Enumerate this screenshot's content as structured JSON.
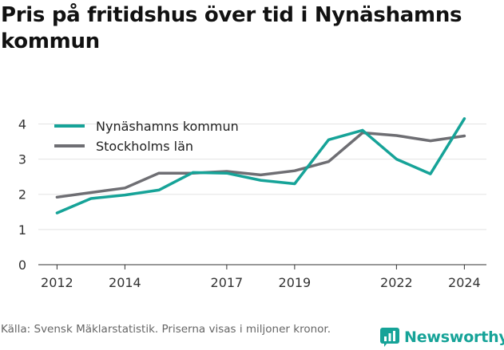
{
  "title": "Pris på fritidshus över tid i Nynäshamns kommun",
  "caption": "Källa: Svensk Mäklarstatistik. Priserna visas i miljoner kronor.",
  "brand": {
    "name": "Newsworthy",
    "logo_icon": "newsworthy-logo-icon",
    "color": "#16a398"
  },
  "chart_data": {
    "type": "line",
    "x": [
      2012,
      2013,
      2014,
      2015,
      2016,
      2017,
      2018,
      2019,
      2020,
      2021,
      2022,
      2023,
      2024
    ],
    "x_tick_labels": [
      "2012",
      "2014",
      "2017",
      "2019",
      "2022",
      "2024"
    ],
    "x_tick_values": [
      2012,
      2014,
      2017,
      2019,
      2022,
      2024
    ],
    "xlim": [
      2011.45,
      2024.65
    ],
    "y_tick_labels": [
      "0",
      "1",
      "2",
      "3",
      "4"
    ],
    "y_tick_values": [
      0,
      1,
      2,
      3,
      4
    ],
    "ylim": [
      0,
      4.35
    ],
    "grid": "horizontal",
    "legend_position": "top-left",
    "series": [
      {
        "name": "Nynäshamns kommun",
        "color": "#16a398",
        "values": [
          1.47,
          1.88,
          1.98,
          2.12,
          2.62,
          2.6,
          2.4,
          2.3,
          3.55,
          3.82,
          3.0,
          2.58,
          4.15
        ]
      },
      {
        "name": "Stockholms län",
        "color": "#6e6e73",
        "values": [
          1.92,
          2.05,
          2.18,
          2.6,
          2.6,
          2.65,
          2.55,
          2.67,
          2.93,
          3.75,
          3.67,
          3.52,
          3.66
        ]
      }
    ]
  }
}
